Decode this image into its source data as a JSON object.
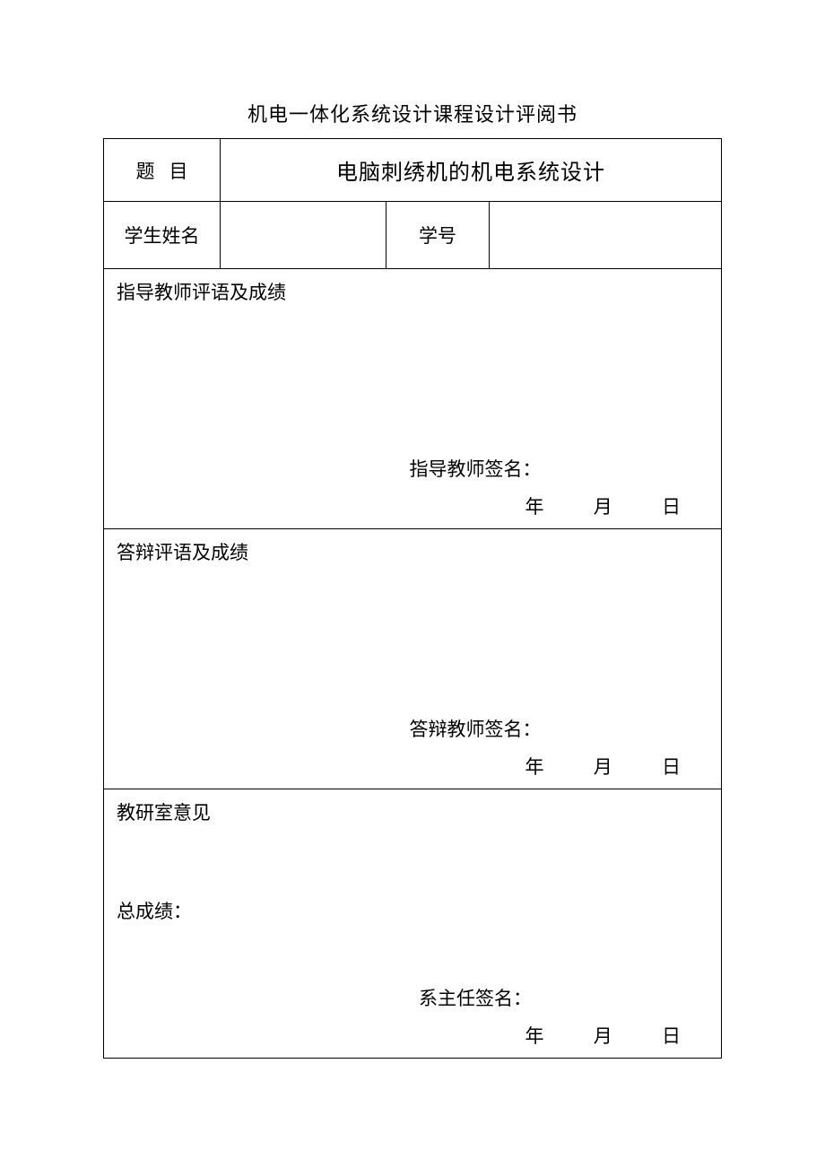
{
  "page": {
    "title": "机电一体化系统设计课程设计评阅书"
  },
  "header": {
    "topic_label": "题目",
    "topic_value": "电脑刺绣机的机电系统设计",
    "student_name_label": "学生姓名",
    "student_name_value": "",
    "student_id_label": "学号",
    "student_id_value": ""
  },
  "sections": {
    "guidance": {
      "heading": "指导教师评语及成绩",
      "signature_label": "指导教师签名：",
      "date_year": "年",
      "date_month": "月",
      "date_day": "日"
    },
    "defense": {
      "heading": "答辩评语及成绩",
      "signature_label": "答辩教师签名：",
      "date_year": "年",
      "date_month": "月",
      "date_day": "日"
    },
    "office": {
      "heading": "教研室意见",
      "total_score_label": "总成绩：",
      "signature_label": "系主任签名：",
      "date_year": "年",
      "date_month": "月",
      "date_day": "日"
    }
  }
}
